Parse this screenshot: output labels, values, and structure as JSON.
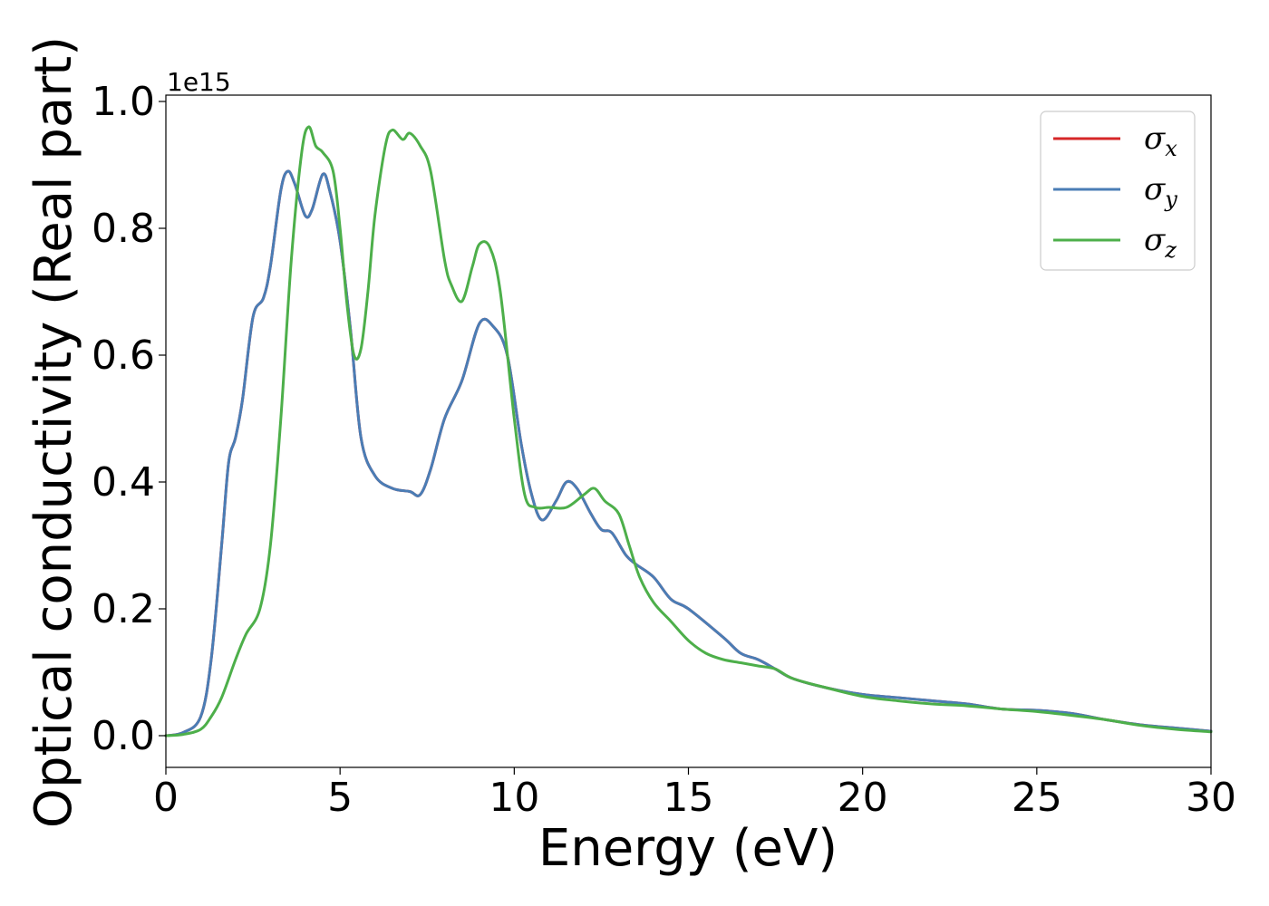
{
  "chart_data": {
    "type": "line",
    "xlabel": "Energy (eV)",
    "ylabel": "Optical conductivity (Real part)",
    "y_offset_label": "1e15",
    "xlim": [
      0,
      30
    ],
    "ylim": [
      -0.05,
      1.01
    ],
    "x_ticks": [
      0,
      5,
      10,
      15,
      20,
      25,
      30
    ],
    "x_tick_labels": [
      "0",
      "5",
      "10",
      "15",
      "20",
      "25",
      "30"
    ],
    "y_ticks": [
      0.0,
      0.2,
      0.4,
      0.6,
      0.8,
      1.0
    ],
    "y_tick_labels": [
      "0.0",
      "0.2",
      "0.4",
      "0.6",
      "0.8",
      "1.0"
    ],
    "grid": false,
    "legend_position": "top-right",
    "series": [
      {
        "name": "σx",
        "symbol": "σ",
        "subscript": "x",
        "color": "#d62728",
        "x": [
          0,
          0.5,
          1.0,
          1.3,
          1.6,
          1.8,
          2.0,
          2.2,
          2.5,
          2.8,
          3.0,
          3.3,
          3.5,
          3.7,
          4.0,
          4.2,
          4.5,
          4.7,
          5.0,
          5.3,
          5.6,
          6.0,
          6.5,
          7.0,
          7.3,
          7.6,
          8.0,
          8.5,
          9.0,
          9.4,
          9.8,
          10.2,
          10.5,
          10.8,
          11.2,
          11.5,
          11.8,
          12.2,
          12.5,
          12.8,
          13.2,
          13.5,
          14.0,
          14.5,
          15.0,
          16.0,
          16.5,
          17.0,
          17.5,
          18.0,
          19.0,
          20.0,
          21.0,
          22.0,
          23.0,
          24.0,
          25.0,
          26.0,
          27.0,
          28.0,
          29.0,
          30.0
        ],
        "y": [
          0.0,
          0.005,
          0.03,
          0.12,
          0.3,
          0.43,
          0.47,
          0.53,
          0.66,
          0.69,
          0.74,
          0.86,
          0.89,
          0.87,
          0.82,
          0.83,
          0.885,
          0.86,
          0.78,
          0.64,
          0.47,
          0.41,
          0.39,
          0.385,
          0.38,
          0.42,
          0.5,
          0.56,
          0.65,
          0.645,
          0.6,
          0.46,
          0.38,
          0.34,
          0.37,
          0.4,
          0.39,
          0.35,
          0.325,
          0.32,
          0.285,
          0.27,
          0.25,
          0.215,
          0.2,
          0.155,
          0.13,
          0.12,
          0.105,
          0.09,
          0.075,
          0.065,
          0.06,
          0.055,
          0.05,
          0.042,
          0.04,
          0.035,
          0.025,
          0.017,
          0.012,
          0.007
        ]
      },
      {
        "name": "σy",
        "symbol": "σ",
        "subscript": "y",
        "color": "#4a7db5",
        "x": [
          0,
          0.5,
          1.0,
          1.3,
          1.6,
          1.8,
          2.0,
          2.2,
          2.5,
          2.8,
          3.0,
          3.3,
          3.5,
          3.7,
          4.0,
          4.2,
          4.5,
          4.7,
          5.0,
          5.3,
          5.6,
          6.0,
          6.5,
          7.0,
          7.3,
          7.6,
          8.0,
          8.5,
          9.0,
          9.4,
          9.8,
          10.2,
          10.5,
          10.8,
          11.2,
          11.5,
          11.8,
          12.2,
          12.5,
          12.8,
          13.2,
          13.5,
          14.0,
          14.5,
          15.0,
          16.0,
          16.5,
          17.0,
          17.5,
          18.0,
          19.0,
          20.0,
          21.0,
          22.0,
          23.0,
          24.0,
          25.0,
          26.0,
          27.0,
          28.0,
          29.0,
          30.0
        ],
        "y": [
          0.0,
          0.005,
          0.03,
          0.12,
          0.3,
          0.43,
          0.47,
          0.53,
          0.66,
          0.69,
          0.74,
          0.86,
          0.89,
          0.87,
          0.82,
          0.83,
          0.885,
          0.86,
          0.78,
          0.64,
          0.47,
          0.41,
          0.39,
          0.385,
          0.38,
          0.42,
          0.5,
          0.56,
          0.65,
          0.645,
          0.6,
          0.46,
          0.38,
          0.34,
          0.37,
          0.4,
          0.39,
          0.35,
          0.325,
          0.32,
          0.285,
          0.27,
          0.25,
          0.215,
          0.2,
          0.155,
          0.13,
          0.12,
          0.105,
          0.09,
          0.075,
          0.065,
          0.06,
          0.055,
          0.05,
          0.042,
          0.04,
          0.035,
          0.025,
          0.017,
          0.012,
          0.007
        ]
      },
      {
        "name": "σz",
        "symbol": "σ",
        "subscript": "z",
        "color": "#4daf4a",
        "x": [
          0,
          0.5,
          1.0,
          1.3,
          1.6,
          2.0,
          2.3,
          2.7,
          3.0,
          3.3,
          3.6,
          3.9,
          4.1,
          4.3,
          4.5,
          4.8,
          5.0,
          5.2,
          5.4,
          5.6,
          5.8,
          6.0,
          6.3,
          6.5,
          6.8,
          7.0,
          7.3,
          7.6,
          8.0,
          8.2,
          8.5,
          8.8,
          9.0,
          9.3,
          9.6,
          10.0,
          10.3,
          10.6,
          11.0,
          11.5,
          12.0,
          12.3,
          12.6,
          13.0,
          13.3,
          13.6,
          14.0,
          14.5,
          15.0,
          15.5,
          16.0,
          16.5,
          17.0,
          17.5,
          18.0,
          19.0,
          20.0,
          21.0,
          22.0,
          23.0,
          24.0,
          25.0,
          26.0,
          27.0,
          28.0,
          29.0,
          30.0
        ],
        "y": [
          0.0,
          0.002,
          0.01,
          0.03,
          0.06,
          0.12,
          0.16,
          0.2,
          0.3,
          0.5,
          0.75,
          0.92,
          0.96,
          0.93,
          0.92,
          0.89,
          0.8,
          0.68,
          0.6,
          0.61,
          0.7,
          0.82,
          0.93,
          0.955,
          0.94,
          0.95,
          0.93,
          0.89,
          0.75,
          0.71,
          0.685,
          0.74,
          0.775,
          0.77,
          0.7,
          0.5,
          0.38,
          0.36,
          0.36,
          0.36,
          0.38,
          0.39,
          0.37,
          0.35,
          0.3,
          0.25,
          0.21,
          0.18,
          0.15,
          0.13,
          0.12,
          0.115,
          0.11,
          0.105,
          0.09,
          0.075,
          0.062,
          0.055,
          0.05,
          0.047,
          0.042,
          0.038,
          0.032,
          0.025,
          0.016,
          0.01,
          0.006
        ]
      }
    ]
  }
}
